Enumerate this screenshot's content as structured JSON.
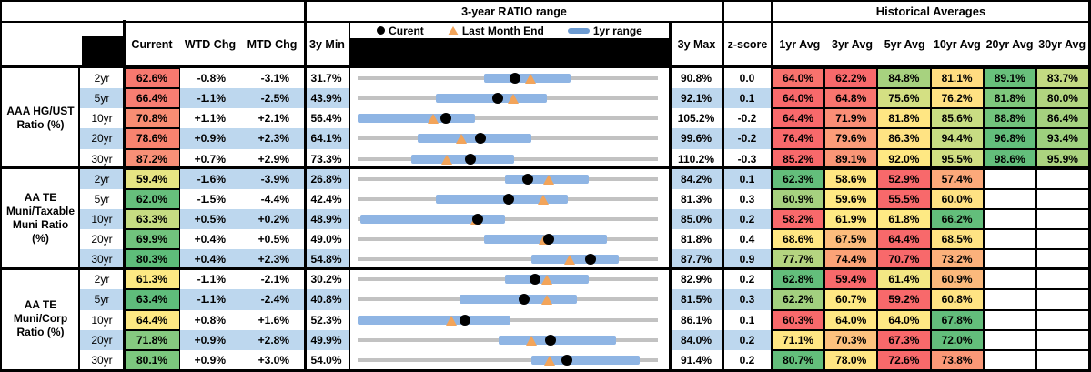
{
  "header": {
    "range_title": "3-year RATIO range",
    "hist_title": "Historical Averages",
    "current": "Current",
    "wtd": "WTD Chg",
    "mtd": "MTD Chg",
    "min": "3y Min",
    "max": "3y Max",
    "z": "z-score",
    "avg_cols": [
      "1yr Avg",
      "3yr Avg",
      "5yr Avg",
      "10yr Avg",
      "20yr Avg",
      "30yr Avg"
    ],
    "legend": {
      "current_label": "Curent",
      "last_month_label": "Last Month End",
      "range_label": "1yr range"
    }
  },
  "colors": {
    "stripe_blue": "#BDD7EE",
    "band_blue": "#8FB5E4",
    "legend_bar_blue": "#6C9BD2",
    "track_gray": "#C2C2C2",
    "marker_orange": "#F2A45A",
    "heat_red": "#F8696B",
    "heat_yellow": "#FFE884",
    "heat_green": "#63BE7B"
  },
  "groups": [
    {
      "label": "AAA HG/UST\nRatio (%)",
      "rows": [
        {
          "tenor": "2yr",
          "current": "62.6%",
          "current_bg": "#F7796F",
          "wtd": "-0.8%",
          "mtd": "-3.1%",
          "min": "31.7%",
          "max": "90.8%",
          "z": "0.0",
          "chart": {
            "band_lo": 42,
            "band_hi": 71,
            "dot": 52.3,
            "tri": 57.5
          },
          "avgs": [
            {
              "v": "64.0%",
              "bg": "#F8726D"
            },
            {
              "v": "62.2%",
              "bg": "#F8696B"
            },
            {
              "v": "84.8%",
              "bg": "#A7D27F"
            },
            {
              "v": "81.1%",
              "bg": "#FFDC81"
            },
            {
              "v": "89.1%",
              "bg": "#68C07B"
            },
            {
              "v": "83.7%",
              "bg": "#C3DA82"
            }
          ]
        },
        {
          "tenor": "5yr",
          "current": "66.4%",
          "current_bg": "#F77E72",
          "wtd": "-1.1%",
          "mtd": "-2.5%",
          "min": "43.9%",
          "max": "92.1%",
          "z": "0.1",
          "chart": {
            "band_lo": 26,
            "band_hi": 63,
            "dot": 46.7,
            "tri": 51.9
          },
          "avgs": [
            {
              "v": "64.0%",
              "bg": "#F8696B"
            },
            {
              "v": "64.8%",
              "bg": "#F9756F"
            },
            {
              "v": "75.6%",
              "bg": "#D4E083"
            },
            {
              "v": "76.2%",
              "bg": "#FFE183"
            },
            {
              "v": "81.8%",
              "bg": "#7FC87D"
            },
            {
              "v": "80.0%",
              "bg": "#B1D480"
            }
          ]
        },
        {
          "tenor": "10yr",
          "current": "70.8%",
          "current_bg": "#F88D73",
          "wtd": "+1.1%",
          "mtd": "+2.1%",
          "min": "56.4%",
          "max": "105.2%",
          "z": "-0.2",
          "chart": {
            "band_lo": 0,
            "band_hi": 39,
            "dot": 29.5,
            "tri": 25.2
          },
          "avgs": [
            {
              "v": "64.4%",
              "bg": "#F8696B"
            },
            {
              "v": "71.9%",
              "bg": "#FA8E76"
            },
            {
              "v": "81.8%",
              "bg": "#FFE683"
            },
            {
              "v": "85.6%",
              "bg": "#C9DD83"
            },
            {
              "v": "88.8%",
              "bg": "#72C37C"
            },
            {
              "v": "86.4%",
              "bg": "#A5D17F"
            }
          ]
        },
        {
          "tenor": "20yr",
          "current": "78.6%",
          "current_bg": "#F8836F",
          "wtd": "+0.9%",
          "mtd": "+2.3%",
          "min": "64.1%",
          "max": "99.6%",
          "z": "-0.2",
          "chart": {
            "band_lo": 20,
            "band_hi": 58,
            "dot": 40.8,
            "tri": 34.4
          },
          "avgs": [
            {
              "v": "76.4%",
              "bg": "#F8696B"
            },
            {
              "v": "79.6%",
              "bg": "#FB9C79"
            },
            {
              "v": "86.3%",
              "bg": "#FFE383"
            },
            {
              "v": "94.4%",
              "bg": "#C7DC83"
            },
            {
              "v": "96.8%",
              "bg": "#63BE7B"
            },
            {
              "v": "93.4%",
              "bg": "#9ED07E"
            }
          ]
        },
        {
          "tenor": "30yr",
          "current": "87.2%",
          "current_bg": "#F89077",
          "wtd": "+0.7%",
          "mtd": "+2.9%",
          "min": "73.3%",
          "max": "110.2%",
          "z": "-0.3",
          "chart": {
            "band_lo": 18,
            "band_hi": 52,
            "dot": 37.7,
            "tri": 29.8
          },
          "avgs": [
            {
              "v": "85.2%",
              "bg": "#F8696B"
            },
            {
              "v": "89.1%",
              "bg": "#FA9677"
            },
            {
              "v": "92.0%",
              "bg": "#FFE883"
            },
            {
              "v": "95.5%",
              "bg": "#D1DF83"
            },
            {
              "v": "98.6%",
              "bg": "#63BE7B"
            },
            {
              "v": "95.9%",
              "bg": "#ABD37F"
            }
          ]
        }
      ]
    },
    {
      "label": "AA TE\nMuni/Taxable\nMuni Ratio\n(%)",
      "rows": [
        {
          "tenor": "2yr",
          "current": "59.4%",
          "current_bg": "#E7E583",
          "wtd": "-1.6%",
          "mtd": "-3.9%",
          "min": "26.8%",
          "max": "84.2%",
          "z": "0.1",
          "chart": {
            "band_lo": 49,
            "band_hi": 77,
            "dot": 56.8,
            "tri": 63.6
          },
          "avgs": [
            {
              "v": "62.3%",
              "bg": "#63BE7B"
            },
            {
              "v": "58.6%",
              "bg": "#FFE783"
            },
            {
              "v": "52.9%",
              "bg": "#F8696B"
            },
            {
              "v": "57.4%",
              "bg": "#FCA97A"
            },
            {
              "v": "",
              "bg": "#FFFFFF"
            },
            {
              "v": "",
              "bg": "#FFFFFF"
            }
          ]
        },
        {
          "tenor": "5yr",
          "current": "62.0%",
          "current_bg": "#66BF7C",
          "wtd": "-1.5%",
          "mtd": "-4.4%",
          "min": "42.4%",
          "max": "81.3%",
          "z": "0.3",
          "chart": {
            "band_lo": 26,
            "band_hi": 70,
            "dot": 50.4,
            "tri": 61.7
          },
          "avgs": [
            {
              "v": "60.9%",
              "bg": "#A6D17F"
            },
            {
              "v": "59.6%",
              "bg": "#FFE984"
            },
            {
              "v": "55.5%",
              "bg": "#F8696B"
            },
            {
              "v": "60.0%",
              "bg": "#FFE283"
            },
            {
              "v": "",
              "bg": "#FFFFFF"
            },
            {
              "v": "",
              "bg": "#FFFFFF"
            }
          ]
        },
        {
          "tenor": "10yr",
          "current": "63.3%",
          "current_bg": "#C6DC82",
          "wtd": "+0.5%",
          "mtd": "+0.2%",
          "min": "48.9%",
          "max": "85.0%",
          "z": "0.2",
          "chart": {
            "band_lo": 1,
            "band_hi": 49,
            "dot": 39.9,
            "tri": 39.3
          },
          "avgs": [
            {
              "v": "58.2%",
              "bg": "#F8696B"
            },
            {
              "v": "61.9%",
              "bg": "#FFE984"
            },
            {
              "v": "61.8%",
              "bg": "#FEEA84"
            },
            {
              "v": "66.2%",
              "bg": "#63BE7B"
            },
            {
              "v": "",
              "bg": "#FFFFFF"
            },
            {
              "v": "",
              "bg": "#FFFFFF"
            }
          ]
        },
        {
          "tenor": "20yr",
          "current": "69.9%",
          "current_bg": "#71C37D",
          "wtd": "+0.4%",
          "mtd": "+0.5%",
          "min": "49.0%",
          "max": "81.8%",
          "z": "0.4",
          "chart": {
            "band_lo": 42,
            "band_hi": 83,
            "dot": 63.7,
            "tri": 62.2
          },
          "avgs": [
            {
              "v": "68.6%",
              "bg": "#FFE783"
            },
            {
              "v": "67.5%",
              "bg": "#FCBD7D"
            },
            {
              "v": "64.4%",
              "bg": "#F8696B"
            },
            {
              "v": "68.5%",
              "bg": "#FFE383"
            },
            {
              "v": "",
              "bg": "#FFFFFF"
            },
            {
              "v": "",
              "bg": "#FFFFFF"
            }
          ]
        },
        {
          "tenor": "30yr",
          "current": "80.3%",
          "current_bg": "#5EBD7A",
          "wtd": "+0.4%",
          "mtd": "+2.3%",
          "min": "54.8%",
          "max": "87.7%",
          "z": "0.9",
          "chart": {
            "band_lo": 58,
            "band_hi": 87,
            "dot": 77.5,
            "tri": 70.5
          },
          "avgs": [
            {
              "v": "77.7%",
              "bg": "#B5D580"
            },
            {
              "v": "74.4%",
              "bg": "#FBA377"
            },
            {
              "v": "70.7%",
              "bg": "#F8696B"
            },
            {
              "v": "73.2%",
              "bg": "#FBB17B"
            },
            {
              "v": "",
              "bg": "#FFFFFF"
            },
            {
              "v": "",
              "bg": "#FFFFFF"
            }
          ]
        }
      ]
    },
    {
      "label": "AA TE\nMuni/Corp\nRatio (%)",
      "rows": [
        {
          "tenor": "2yr",
          "current": "61.3%",
          "current_bg": "#FDE983",
          "wtd": "-1.1%",
          "mtd": "-2.1%",
          "min": "30.2%",
          "max": "82.9%",
          "z": "0.2",
          "chart": {
            "band_lo": 49,
            "band_hi": 77,
            "dot": 59.0,
            "tri": 63.0
          },
          "avgs": [
            {
              "v": "62.8%",
              "bg": "#63BE7B"
            },
            {
              "v": "59.4%",
              "bg": "#F8696B"
            },
            {
              "v": "61.4%",
              "bg": "#F3E884"
            },
            {
              "v": "60.9%",
              "bg": "#FBB97C"
            },
            {
              "v": "",
              "bg": "#FFFFFF"
            },
            {
              "v": "",
              "bg": "#FFFFFF"
            }
          ]
        },
        {
          "tenor": "5yr",
          "current": "63.4%",
          "current_bg": "#5FBD7B",
          "wtd": "-1.1%",
          "mtd": "-2.4%",
          "min": "40.8%",
          "max": "81.5%",
          "z": "0.3",
          "chart": {
            "band_lo": 34,
            "band_hi": 73,
            "dot": 55.5,
            "tri": 63.0
          },
          "avgs": [
            {
              "v": "62.2%",
              "bg": "#A2D07F"
            },
            {
              "v": "60.7%",
              "bg": "#FFE884"
            },
            {
              "v": "59.2%",
              "bg": "#F8696B"
            },
            {
              "v": "60.8%",
              "bg": "#FFE483"
            },
            {
              "v": "",
              "bg": "#FFFFFF"
            },
            {
              "v": "",
              "bg": "#FFFFFF"
            }
          ]
        },
        {
          "tenor": "10yr",
          "current": "64.4%",
          "current_bg": "#FDE883",
          "wtd": "+0.8%",
          "mtd": "+1.6%",
          "min": "52.3%",
          "max": "86.1%",
          "z": "0.1",
          "chart": {
            "band_lo": 0,
            "band_hi": 51,
            "dot": 35.8,
            "tri": 31.1
          },
          "avgs": [
            {
              "v": "60.3%",
              "bg": "#F8696B"
            },
            {
              "v": "64.0%",
              "bg": "#FFE884"
            },
            {
              "v": "64.0%",
              "bg": "#FEE884"
            },
            {
              "v": "67.8%",
              "bg": "#63BE7B"
            },
            {
              "v": "",
              "bg": "#FFFFFF"
            },
            {
              "v": "",
              "bg": "#FFFFFF"
            }
          ]
        },
        {
          "tenor": "20yr",
          "current": "71.8%",
          "current_bg": "#86CA80",
          "wtd": "+0.9%",
          "mtd": "+2.8%",
          "min": "49.9%",
          "max": "84.0%",
          "z": "0.2",
          "chart": {
            "band_lo": 47,
            "band_hi": 86,
            "dot": 64.2,
            "tri": 58.0
          },
          "avgs": [
            {
              "v": "71.1%",
              "bg": "#FFE784"
            },
            {
              "v": "70.3%",
              "bg": "#FCC17E"
            },
            {
              "v": "67.3%",
              "bg": "#F8696B"
            },
            {
              "v": "72.0%",
              "bg": "#63BE7B"
            },
            {
              "v": "",
              "bg": "#FFFFFF"
            },
            {
              "v": "",
              "bg": "#FFFFFF"
            }
          ]
        },
        {
          "tenor": "30yr",
          "current": "80.1%",
          "current_bg": "#7CC77E",
          "wtd": "+0.9%",
          "mtd": "+3.0%",
          "min": "54.0%",
          "max": "91.4%",
          "z": "0.2",
          "chart": {
            "band_lo": 58,
            "band_hi": 94,
            "dot": 69.8,
            "tri": 64.0
          },
          "avgs": [
            {
              "v": "80.7%",
              "bg": "#63BE7B"
            },
            {
              "v": "78.0%",
              "bg": "#FFE583"
            },
            {
              "v": "72.6%",
              "bg": "#F8696B"
            },
            {
              "v": "73.8%",
              "bg": "#FB9877"
            },
            {
              "v": "",
              "bg": "#FFFFFF"
            },
            {
              "v": "",
              "bg": "#FFFFFF"
            }
          ]
        }
      ]
    }
  ],
  "chart_data": {
    "type": "bullet-range",
    "description": "Each row: gray track spans 3y Min to 3y Max; blue bar = 1yr range; black dot = Current; orange triangle = Last Month End. Values in %.",
    "rows": [
      {
        "group": "AAA HG/UST",
        "tenor": "2yr",
        "min3y": 31.7,
        "max3y": 90.8,
        "current": 62.6,
        "last_month_end": 65.7,
        "band_1yr": [
          56.5,
          73.7
        ]
      },
      {
        "group": "AAA HG/UST",
        "tenor": "5yr",
        "min3y": 43.9,
        "max3y": 92.1,
        "current": 66.4,
        "last_month_end": 68.9,
        "band_1yr": [
          56.4,
          74.3
        ]
      },
      {
        "group": "AAA HG/UST",
        "tenor": "10yr",
        "min3y": 56.4,
        "max3y": 105.2,
        "current": 70.8,
        "last_month_end": 68.7,
        "band_1yr": [
          56.4,
          75.4
        ]
      },
      {
        "group": "AAA HG/UST",
        "tenor": "20yr",
        "min3y": 64.1,
        "max3y": 99.6,
        "current": 78.6,
        "last_month_end": 76.3,
        "band_1yr": [
          71.2,
          84.7
        ]
      },
      {
        "group": "AAA HG/UST",
        "tenor": "30yr",
        "min3y": 73.3,
        "max3y": 110.2,
        "current": 87.2,
        "last_month_end": 84.3,
        "band_1yr": [
          79.9,
          92.5
        ]
      },
      {
        "group": "AA TE Muni/Taxable Muni",
        "tenor": "2yr",
        "min3y": 26.8,
        "max3y": 84.2,
        "current": 59.4,
        "last_month_end": 63.3,
        "band_1yr": [
          54.9,
          71.0
        ]
      },
      {
        "group": "AA TE Muni/Taxable Muni",
        "tenor": "5yr",
        "min3y": 42.4,
        "max3y": 81.3,
        "current": 62.0,
        "last_month_end": 66.4,
        "band_1yr": [
          52.5,
          69.6
        ]
      },
      {
        "group": "AA TE Muni/Taxable Muni",
        "tenor": "10yr",
        "min3y": 48.9,
        "max3y": 85.0,
        "current": 63.3,
        "last_month_end": 63.1,
        "band_1yr": [
          49.3,
          66.6
        ]
      },
      {
        "group": "AA TE Muni/Taxable Muni",
        "tenor": "20yr",
        "min3y": 49.0,
        "max3y": 81.8,
        "current": 69.9,
        "last_month_end": 69.4,
        "band_1yr": [
          62.8,
          76.2
        ]
      },
      {
        "group": "AA TE Muni/Taxable Muni",
        "tenor": "30yr",
        "min3y": 54.8,
        "max3y": 87.7,
        "current": 80.3,
        "last_month_end": 78.0,
        "band_1yr": [
          73.9,
          83.4
        ]
      },
      {
        "group": "AA TE Muni/Corp",
        "tenor": "2yr",
        "min3y": 30.2,
        "max3y": 82.9,
        "current": 61.3,
        "last_month_end": 63.4,
        "band_1yr": [
          56.0,
          70.8
        ]
      },
      {
        "group": "AA TE Muni/Corp",
        "tenor": "5yr",
        "min3y": 40.8,
        "max3y": 81.5,
        "current": 63.4,
        "last_month_end": 65.8,
        "band_1yr": [
          54.6,
          70.5
        ]
      },
      {
        "group": "AA TE Muni/Corp",
        "tenor": "10yr",
        "min3y": 52.3,
        "max3y": 86.1,
        "current": 64.4,
        "last_month_end": 62.8,
        "band_1yr": [
          52.3,
          69.5
        ]
      },
      {
        "group": "AA TE Muni/Corp",
        "tenor": "20yr",
        "min3y": 49.9,
        "max3y": 84.0,
        "current": 71.8,
        "last_month_end": 69.0,
        "band_1yr": [
          65.9,
          79.2
        ]
      },
      {
        "group": "AA TE Muni/Corp",
        "tenor": "30yr",
        "min3y": 54.0,
        "max3y": 91.4,
        "current": 80.1,
        "last_month_end": 77.1,
        "band_1yr": [
          75.7,
          89.2
        ]
      }
    ]
  }
}
